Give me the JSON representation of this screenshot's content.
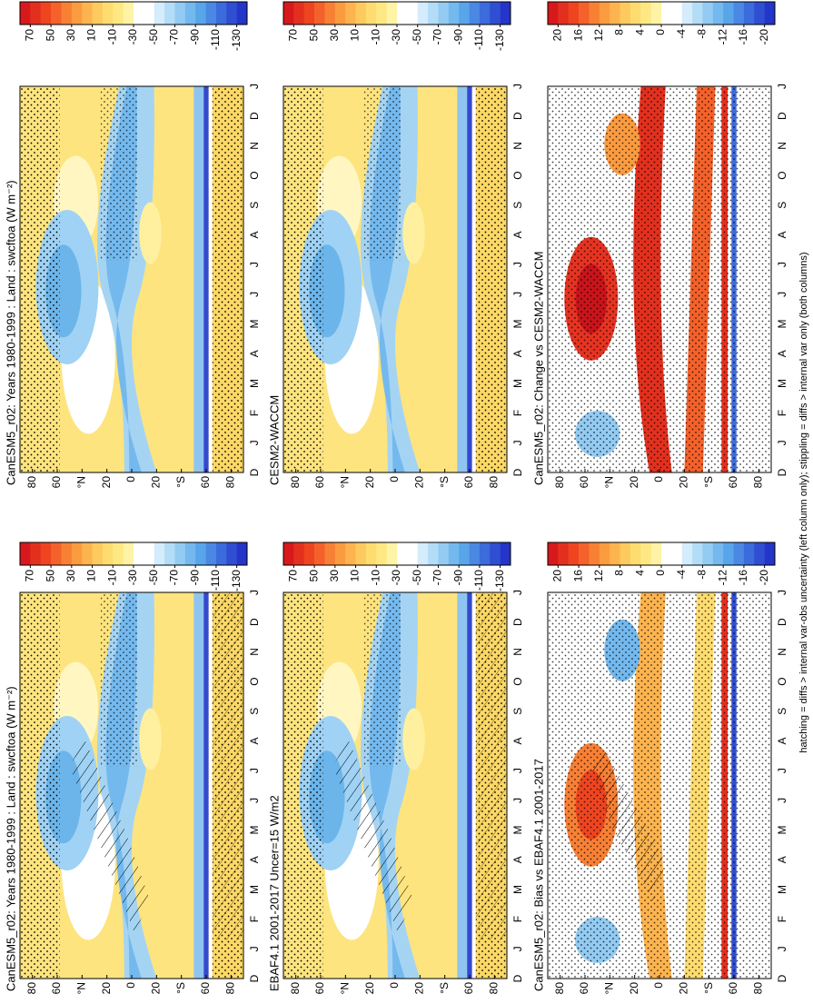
{
  "chart_data": [
    {
      "type": "contour",
      "title": "CanESM5_r02: Years 1980-1999 : Land : swcftoa (W m⁻²)",
      "categories": [
        "D",
        "J",
        "F",
        "M",
        "A",
        "M",
        "J",
        "J",
        "A",
        "S",
        "O",
        "N",
        "D",
        "J"
      ],
      "ylim": [
        90,
        -90
      ],
      "yticks": [
        80,
        60,
        {
          "value": 40,
          "label": "°N"
        },
        20,
        0,
        {
          "value": -20,
          "label": "20"
        },
        {
          "value": -40,
          "label": "°S"
        },
        {
          "value": -60,
          "label": "60"
        },
        {
          "value": -80,
          "label": "80"
        }
      ],
      "clim": [
        80,
        -140
      ],
      "cticks": [
        70,
        50,
        30,
        10,
        -10,
        -30,
        -50,
        -70,
        -90,
        -110,
        -130
      ]
    },
    {
      "type": "contour",
      "title": "CanESM5_r02: Years 1980-1999 : Land : swcftoa (W m⁻²)",
      "categories": [
        "D",
        "J",
        "F",
        "M",
        "A",
        "M",
        "J",
        "J",
        "A",
        "S",
        "O",
        "N",
        "D",
        "J"
      ],
      "ylim": [
        90,
        -90
      ],
      "yticks": [
        80,
        60,
        {
          "value": 40,
          "label": "°N"
        },
        20,
        0,
        {
          "value": -20,
          "label": "20"
        },
        {
          "value": -40,
          "label": "°S"
        },
        {
          "value": -60,
          "label": "60"
        },
        {
          "value": -80,
          "label": "80"
        }
      ],
      "clim": [
        80,
        -140
      ],
      "cticks": [
        70,
        50,
        30,
        10,
        -10,
        -30,
        -50,
        -70,
        -90,
        -110,
        -130
      ]
    },
    {
      "type": "contour",
      "title": "EBAF4.1 2001-2017 Uncer=15 W/m2",
      "categories": [
        "D",
        "J",
        "F",
        "M",
        "A",
        "M",
        "J",
        "J",
        "A",
        "S",
        "O",
        "N",
        "D",
        "J"
      ],
      "ylim": [
        90,
        -90
      ],
      "yticks": [
        80,
        60,
        {
          "value": 40,
          "label": "°N"
        },
        20,
        0,
        {
          "value": -20,
          "label": "20"
        },
        {
          "value": -40,
          "label": "°S"
        },
        {
          "value": -60,
          "label": "60"
        },
        {
          "value": -80,
          "label": "80"
        }
      ],
      "clim": [
        80,
        -140
      ],
      "cticks": [
        70,
        50,
        30,
        10,
        -10,
        -30,
        -50,
        -70,
        -90,
        -110,
        -130
      ]
    },
    {
      "type": "contour",
      "title": "CESM2-WACCM",
      "categories": [
        "D",
        "J",
        "F",
        "M",
        "A",
        "M",
        "J",
        "J",
        "A",
        "S",
        "O",
        "N",
        "D",
        "J"
      ],
      "ylim": [
        90,
        -90
      ],
      "yticks": [
        80,
        60,
        {
          "value": 40,
          "label": "°N"
        },
        20,
        0,
        {
          "value": -20,
          "label": "20"
        },
        {
          "value": -40,
          "label": "°S"
        },
        {
          "value": -60,
          "label": "60"
        },
        {
          "value": -80,
          "label": "80"
        }
      ],
      "clim": [
        80,
        -140
      ],
      "cticks": [
        70,
        50,
        30,
        10,
        -10,
        -30,
        -50,
        -70,
        -90,
        -110,
        -130
      ]
    },
    {
      "type": "contour",
      "title": "CanESM5_r02: Bias vs EBAF4.1 2001-2017",
      "categories": [
        "D",
        "J",
        "F",
        "M",
        "A",
        "M",
        "J",
        "J",
        "A",
        "S",
        "O",
        "N",
        "D",
        "J"
      ],
      "ylim": [
        90,
        -90
      ],
      "yticks": [
        80,
        60,
        {
          "value": 40,
          "label": "°N"
        },
        20,
        0,
        {
          "value": -20,
          "label": "20"
        },
        {
          "value": -40,
          "label": "°S"
        },
        {
          "value": -60,
          "label": "60"
        },
        {
          "value": -80,
          "label": "80"
        }
      ],
      "clim": [
        22,
        -22
      ],
      "cticks": [
        20,
        16,
        12,
        8,
        4,
        0,
        -4,
        -8,
        -12,
        -16,
        -20
      ]
    },
    {
      "type": "contour",
      "title": "CanESM5_r02: Change vs CESM2-WACCM",
      "categories": [
        "D",
        "J",
        "F",
        "M",
        "A",
        "M",
        "J",
        "J",
        "A",
        "S",
        "O",
        "N",
        "D",
        "J"
      ],
      "ylim": [
        90,
        -90
      ],
      "yticks": [
        80,
        60,
        {
          "value": 40,
          "label": "°N"
        },
        20,
        0,
        {
          "value": -20,
          "label": "20"
        },
        {
          "value": -40,
          "label": "°S"
        },
        {
          "value": -60,
          "label": "60"
        },
        {
          "value": -80,
          "label": "80"
        }
      ],
      "clim": [
        22,
        -22
      ],
      "cticks": [
        20,
        16,
        12,
        8,
        4,
        0,
        -4,
        -8,
        -12,
        -16,
        -20
      ]
    }
  ],
  "palette": [
    "#d7191c",
    "#e3301e",
    "#ee4520",
    "#f4612a",
    "#f88035",
    "#fb9b40",
    "#fdb44f",
    "#fdca5f",
    "#fedc70",
    "#fee883",
    "#fff3a5",
    "#ffffff",
    "#ffffff",
    "#d4ecfb",
    "#b3dcf7",
    "#93cbf2",
    "#74b9ee",
    "#58a5ea",
    "#4a88e3",
    "#3c6bdb",
    "#2f4ed2",
    "#2435c9"
  ],
  "footer": "hatching = diffs > internal var-obs uncertainty (left column only); stippling = diffs > internal var only (both columns)"
}
